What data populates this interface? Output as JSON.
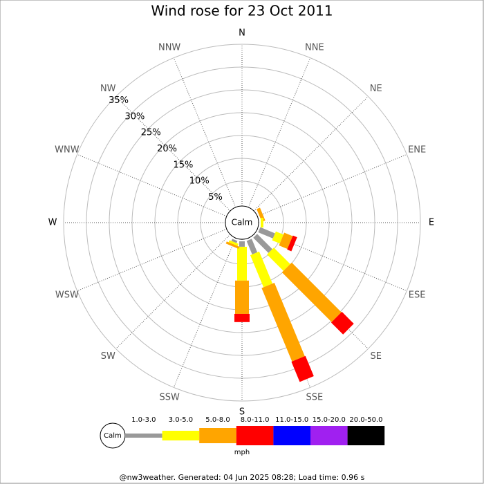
{
  "chart_data": {
    "type": "wind_rose",
    "title": "Wind rose for 23 Oct 2011",
    "categories": [
      "N",
      "NNE",
      "NE",
      "ENE",
      "E",
      "ESE",
      "SE",
      "SSE",
      "S",
      "SSW",
      "SW",
      "WSW",
      "W",
      "WNW",
      "NW",
      "NNW"
    ],
    "series": [
      {
        "name": "1.0-3.0",
        "color": "#999999",
        "values": [
          0,
          0,
          0,
          0,
          0,
          3.5,
          4.7,
          3.2,
          1.2,
          0.5,
          0,
          0,
          0,
          0,
          0,
          0
        ]
      },
      {
        "name": "3.0-5.0",
        "color": "#ffff00",
        "values": [
          0,
          0,
          0,
          0,
          0.6,
          1.8,
          5.1,
          7.6,
          7.4,
          0.5,
          0,
          0,
          0,
          0,
          0,
          0
        ]
      },
      {
        "name": "5.0-8.0",
        "color": "#ffa500",
        "values": [
          0,
          0,
          0,
          0.8,
          0,
          2,
          15.4,
          17.4,
          7.3,
          0.5,
          0,
          0,
          0,
          0,
          0,
          0
        ]
      },
      {
        "name": "8.0-11.0",
        "color": "#ff0000",
        "values": [
          0,
          0,
          0,
          0,
          0,
          1,
          3.7,
          4.8,
          1.8,
          0,
          0,
          0,
          0,
          0,
          0,
          0
        ]
      },
      {
        "name": "11.0-15.0",
        "color": "#0000ff",
        "values": [
          0,
          0,
          0,
          0,
          0,
          0,
          0,
          0,
          0,
          0,
          0,
          0,
          0,
          0,
          0,
          0
        ]
      },
      {
        "name": "15.0-20.0",
        "color": "#a020f0",
        "values": [
          0,
          0,
          0,
          0,
          0,
          0,
          0,
          0,
          0,
          0,
          0,
          0,
          0,
          0,
          0,
          0
        ]
      },
      {
        "name": "20.0-50.0",
        "color": "#000000",
        "values": [
          0,
          0,
          0,
          0,
          0,
          0,
          0,
          0,
          0,
          0,
          0,
          0,
          0,
          0,
          0,
          0
        ]
      }
    ],
    "ylim": [
      0,
      35
    ],
    "yticks": [
      {
        "value": 5,
        "label": "5%"
      },
      {
        "value": 10,
        "label": "10%"
      },
      {
        "value": 15,
        "label": "15%"
      },
      {
        "value": 20,
        "label": "20%"
      },
      {
        "value": 25,
        "label": "25%"
      },
      {
        "value": 30,
        "label": "30%"
      },
      {
        "value": 35,
        "label": "35%"
      }
    ],
    "calm_label": "Calm",
    "unit": "mph"
  },
  "footer": "@nw3weather. Generated: 04 Jun 2025 08:28; Load time: 0.96 s"
}
